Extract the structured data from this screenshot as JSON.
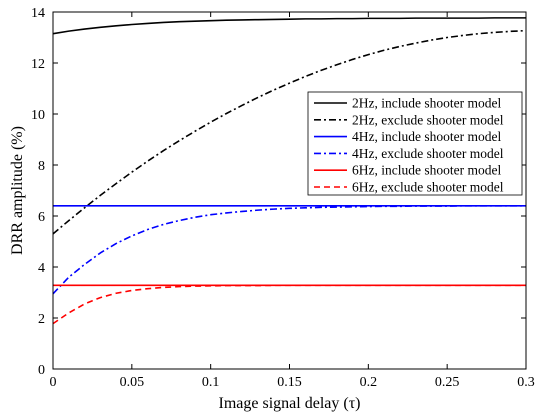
{
  "chart_data": {
    "type": "line",
    "title": "",
    "xlabel": "Image signal delay (τ)",
    "ylabel": "DRR amplitude (%)",
    "xlim": [
      0,
      0.3
    ],
    "ylim": [
      0,
      14
    ],
    "xticks": [
      0,
      0.05,
      0.1,
      0.15,
      0.2,
      0.25,
      0.3
    ],
    "xtick_labels": [
      "0",
      "0.05",
      "0.1",
      "0.15",
      "0.2",
      "0.25",
      "0.3"
    ],
    "yticks": [
      0,
      2,
      4,
      6,
      8,
      10,
      12,
      14
    ],
    "ytick_labels": [
      "0",
      "2",
      "4",
      "6",
      "8",
      "10",
      "12",
      "14"
    ],
    "grid": false,
    "legend_position": "center-right",
    "x": [
      0,
      0.01,
      0.02,
      0.03,
      0.04,
      0.05,
      0.06,
      0.07,
      0.08,
      0.09,
      0.1,
      0.11,
      0.12,
      0.13,
      0.14,
      0.15,
      0.16,
      0.17,
      0.18,
      0.19,
      0.2,
      0.21,
      0.22,
      0.23,
      0.24,
      0.25,
      0.26,
      0.27,
      0.28,
      0.29,
      0.3
    ],
    "series": [
      {
        "name": "2Hz, include shooter model",
        "color": "#000000",
        "dash": "solid",
        "values": [
          13.15,
          13.25,
          13.33,
          13.4,
          13.46,
          13.51,
          13.55,
          13.59,
          13.62,
          13.64,
          13.66,
          13.68,
          13.69,
          13.7,
          13.71,
          13.72,
          13.73,
          13.73,
          13.74,
          13.74,
          13.75,
          13.75,
          13.75,
          13.76,
          13.76,
          13.76,
          13.76,
          13.76,
          13.77,
          13.77,
          13.77
        ]
      },
      {
        "name": "2Hz, exclude shooter model",
        "color": "#000000",
        "dash": "dashdot",
        "values": [
          5.3,
          5.82,
          6.32,
          6.81,
          7.27,
          7.72,
          8.15,
          8.56,
          8.95,
          9.32,
          9.68,
          10.02,
          10.34,
          10.65,
          10.94,
          11.21,
          11.47,
          11.71,
          11.93,
          12.14,
          12.33,
          12.5,
          12.65,
          12.78,
          12.9,
          13.0,
          13.08,
          13.15,
          13.2,
          13.24,
          13.27
        ]
      },
      {
        "name": "4Hz, include shooter model",
        "color": "#0000ff",
        "dash": "solid",
        "values": [
          6.4,
          6.4,
          6.4,
          6.4,
          6.4,
          6.4,
          6.4,
          6.4,
          6.4,
          6.4,
          6.4,
          6.4,
          6.4,
          6.4,
          6.4,
          6.4,
          6.4,
          6.4,
          6.4,
          6.4,
          6.4,
          6.4,
          6.4,
          6.4,
          6.4,
          6.4,
          6.4,
          6.4,
          6.4,
          6.4,
          6.4
        ]
      },
      {
        "name": "4Hz, exclude shooter model",
        "color": "#0000ff",
        "dash": "dashdot",
        "values": [
          2.95,
          3.6,
          4.1,
          4.55,
          4.92,
          5.22,
          5.47,
          5.67,
          5.82,
          5.95,
          6.05,
          6.12,
          6.18,
          6.23,
          6.27,
          6.3,
          6.32,
          6.34,
          6.35,
          6.36,
          6.37,
          6.38,
          6.38,
          6.39,
          6.39,
          6.39,
          6.4,
          6.4,
          6.4,
          6.4,
          6.4
        ]
      },
      {
        "name": "6Hz, include shooter model",
        "color": "#ff0000",
        "dash": "solid",
        "values": [
          3.28,
          3.28,
          3.28,
          3.28,
          3.28,
          3.28,
          3.28,
          3.28,
          3.28,
          3.28,
          3.28,
          3.28,
          3.28,
          3.28,
          3.28,
          3.28,
          3.28,
          3.28,
          3.28,
          3.28,
          3.28,
          3.28,
          3.28,
          3.28,
          3.28,
          3.28,
          3.28,
          3.28,
          3.28,
          3.28,
          3.28
        ]
      },
      {
        "name": "6Hz, exclude shooter model",
        "color": "#ff0000",
        "dash": "dashed",
        "values": [
          1.78,
          2.2,
          2.55,
          2.8,
          2.97,
          3.08,
          3.15,
          3.2,
          3.23,
          3.25,
          3.26,
          3.27,
          3.27,
          3.27,
          3.28,
          3.28,
          3.28,
          3.28,
          3.28,
          3.28,
          3.28,
          3.28,
          3.28,
          3.28,
          3.28,
          3.28,
          3.28,
          3.28,
          3.28,
          3.28,
          3.28
        ]
      }
    ]
  }
}
